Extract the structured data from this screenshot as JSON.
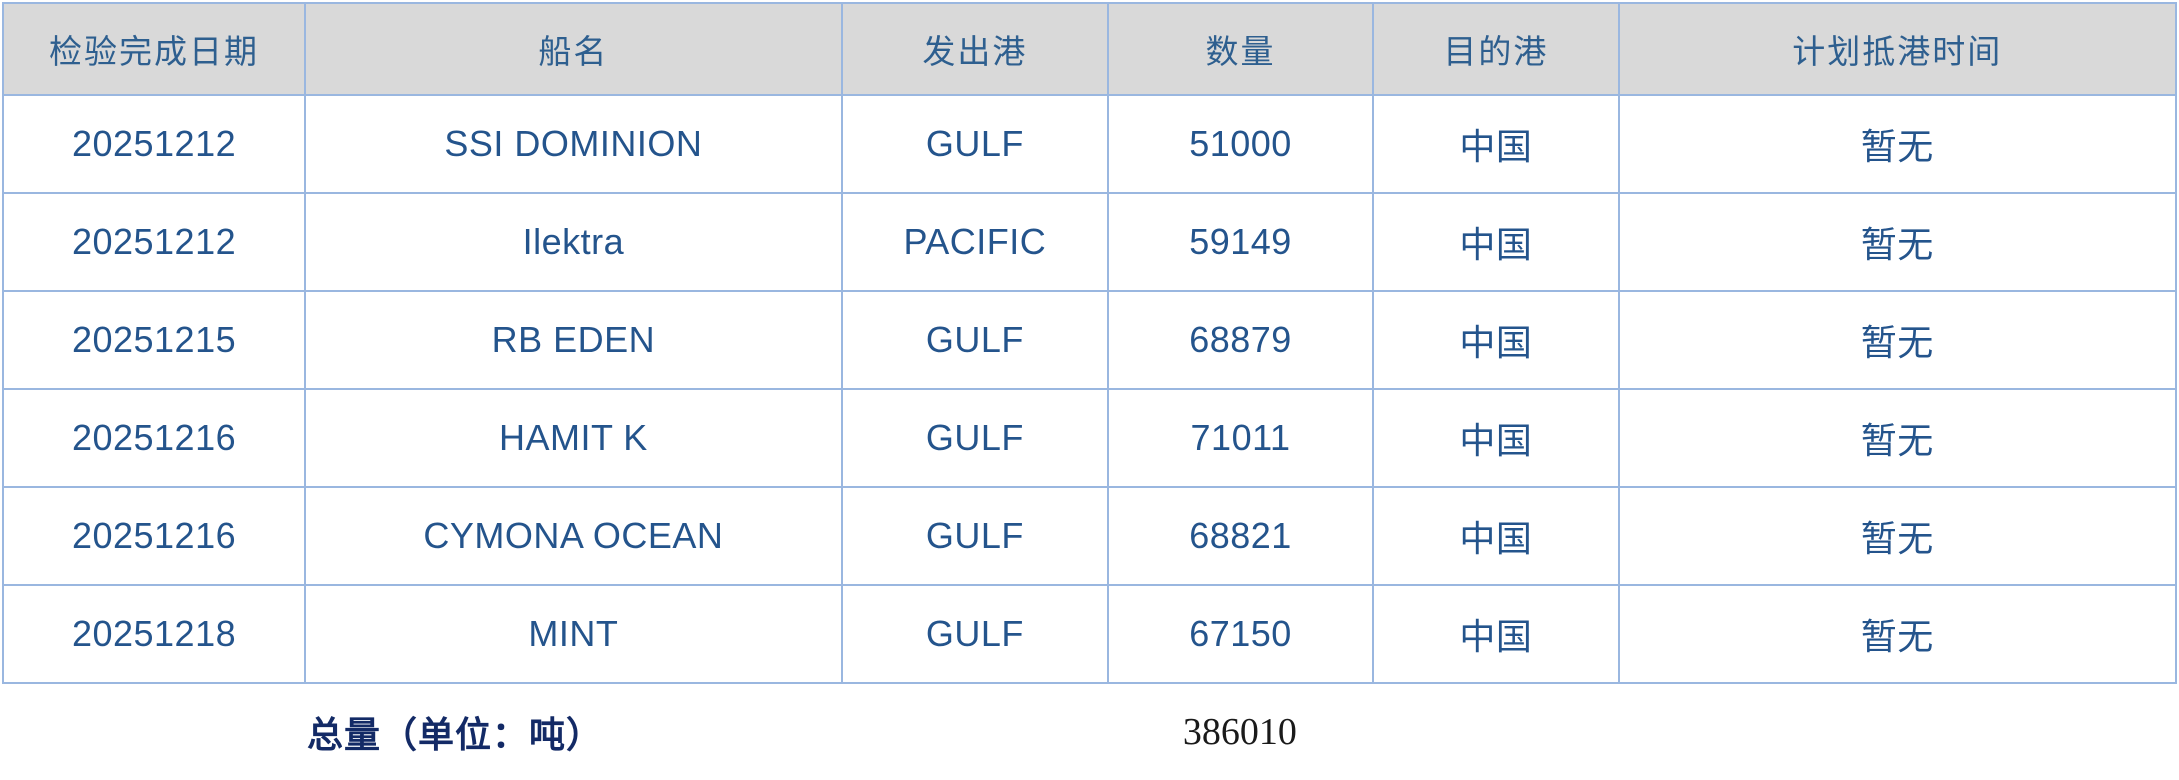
{
  "table": {
    "columns": [
      {
        "key": "date",
        "label": "检验完成日期"
      },
      {
        "key": "vessel",
        "label": "船名"
      },
      {
        "key": "origin",
        "label": "发出港"
      },
      {
        "key": "quantity",
        "label": "数量"
      },
      {
        "key": "dest",
        "label": "目的港"
      },
      {
        "key": "eta",
        "label": "计划抵港时间"
      }
    ],
    "rows": [
      {
        "date": "20251212",
        "vessel": "SSI DOMINION",
        "origin": "GULF",
        "quantity": "51000",
        "dest": "中国",
        "eta": "暂无"
      },
      {
        "date": "20251212",
        "vessel": "Ilektra",
        "origin": "PACIFIC",
        "quantity": "59149",
        "dest": "中国",
        "eta": "暂无"
      },
      {
        "date": "20251215",
        "vessel": "RB EDEN",
        "origin": "GULF",
        "quantity": "68879",
        "dest": "中国",
        "eta": "暂无"
      },
      {
        "date": "20251216",
        "vessel": "HAMIT K",
        "origin": "GULF",
        "quantity": "71011",
        "dest": "中国",
        "eta": "暂无"
      },
      {
        "date": "20251216",
        "vessel": "CYMONA OCEAN",
        "origin": "GULF",
        "quantity": "68821",
        "dest": "中国",
        "eta": "暂无"
      },
      {
        "date": "20251218",
        "vessel": "MINT",
        "origin": "GULF",
        "quantity": "67150",
        "dest": "中国",
        "eta": "暂无"
      }
    ]
  },
  "footer": {
    "total_label": "总量（单位：吨）",
    "total_value": "386010"
  },
  "colors": {
    "border": "#9ab7e0",
    "header_bg": "#d9d9d9",
    "header_text": "#2e5f8f",
    "data_text": "#24548c",
    "total_label_text": "#132a66",
    "total_value_text": "#1a1a1a"
  }
}
